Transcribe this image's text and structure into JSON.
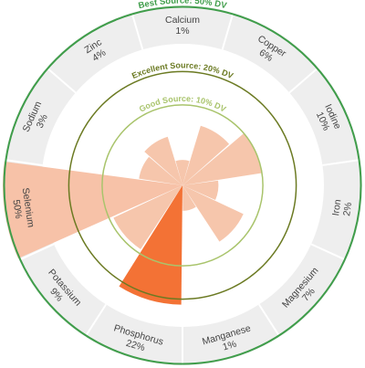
{
  "chart_data": {
    "type": "polar-bar",
    "title": "",
    "max_value": 50,
    "thresholds": [
      {
        "label": "Best Source: 50% DV",
        "value": 50,
        "color": "#3f9d4a"
      },
      {
        "label": "Excellent Source: 20% DV",
        "value": 20,
        "color": "#6b7a22"
      },
      {
        "label": "Good Source: 10% DV",
        "value": 10,
        "color": "#a9c46c"
      }
    ],
    "categories": [
      {
        "name": "Calcium",
        "value": 1,
        "label": "1%",
        "color": "#f5c3a8"
      },
      {
        "name": "Copper",
        "value": 6,
        "label": "6%",
        "color": "#f5c3a8"
      },
      {
        "name": "Iodine",
        "value": 10,
        "label": "10%",
        "color": "#f5c3a8"
      },
      {
        "name": "Iron",
        "value": 2,
        "label": "2%",
        "color": "#f5c3a8"
      },
      {
        "name": "Magnesium",
        "value": 7,
        "label": "7%",
        "color": "#f5c3a8"
      },
      {
        "name": "Manganese",
        "value": 1,
        "label": "1%",
        "color": "#f5c3a8"
      },
      {
        "name": "Phosphorus",
        "value": 22,
        "label": "22%",
        "color": "#f26a2a"
      },
      {
        "name": "Potassium",
        "value": 9,
        "label": "9%",
        "color": "#f5c3a8"
      },
      {
        "name": "Selenium",
        "value": 50,
        "label": "50%",
        "color": "#f7bfa3"
      },
      {
        "name": "Sodium",
        "value": 3,
        "label": "3%",
        "color": "#f5c3a8"
      },
      {
        "name": "Zinc",
        "value": 4,
        "label": "4%",
        "color": "#f5c3a8"
      }
    ],
    "colors": {
      "band": "#eeeeee",
      "band_divider": "#ffffff",
      "label_text": "#444444"
    }
  }
}
